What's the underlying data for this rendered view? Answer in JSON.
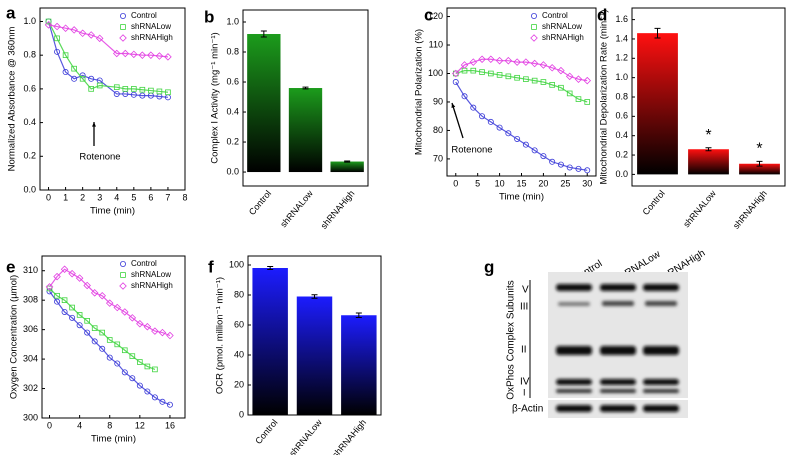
{
  "chart_data": [
    {
      "type": "scatter",
      "panel": "a",
      "xlabel": "Time (min)",
      "ylabel": "Normalized Absorbance @ 360nm",
      "annotation": "Rotenone",
      "legend": "top-right",
      "x": [
        0,
        0.5,
        1,
        1.5,
        2,
        2.5,
        3,
        4,
        4.5,
        5,
        5.5,
        6,
        6.5,
        7
      ],
      "series": [
        {
          "name": "Control",
          "color": "#3a3ad8",
          "values": [
            1.0,
            0.82,
            0.7,
            0.66,
            0.68,
            0.66,
            0.65,
            0.57,
            0.57,
            0.565,
            0.56,
            0.56,
            0.555,
            0.55
          ]
        },
        {
          "name": "shRNALow",
          "color": "#3ed43e",
          "values": [
            1.0,
            0.9,
            0.8,
            0.72,
            0.66,
            0.6,
            0.62,
            0.61,
            0.6,
            0.6,
            0.595,
            0.59,
            0.585,
            0.58
          ]
        },
        {
          "name": "shRNAHigh",
          "color": "#e23ee2",
          "values": [
            0.98,
            0.97,
            0.96,
            0.95,
            0.93,
            0.92,
            0.9,
            0.81,
            0.81,
            0.805,
            0.8,
            0.8,
            0.795,
            0.79
          ]
        }
      ],
      "xlim": [
        -0.5,
        8
      ],
      "xticks": [
        0,
        1,
        2,
        3,
        4,
        5,
        6,
        7,
        8
      ],
      "ylim": [
        0,
        1.08
      ],
      "yticks": [
        {
          "value": 0,
          "label": "0.0"
        },
        0.2,
        0.4,
        0.6,
        0.8,
        {
          "value": 1,
          "label": "1.0"
        }
      ]
    },
    {
      "type": "bar",
      "panel": "b",
      "ylabel": "Complex I Activity (mg⁻¹ min⁻¹)",
      "color": "#1c9c1c",
      "categories": [
        "Control",
        "shRNALow",
        "shRNAHigh"
      ],
      "values": [
        0.92,
        0.56,
        0.07
      ],
      "errors": [
        0.02,
        0.006,
        0.004
      ],
      "ylim": [
        -0.093,
        1.08
      ],
      "yticks": [
        {
          "value": 0,
          "label": "0.0"
        },
        0.2,
        0.4,
        0.6,
        0.8,
        {
          "value": 1,
          "label": "1.0"
        }
      ]
    },
    {
      "type": "scatter",
      "panel": "c",
      "xlabel": "Time (min)",
      "ylabel": "Mitochondrial Polarization (%)",
      "annotation": "Rotenone",
      "legend": "top-right",
      "x": [
        0,
        2,
        4,
        6,
        8,
        10,
        12,
        14,
        16,
        18,
        20,
        22,
        24,
        26,
        28,
        30
      ],
      "series": [
        {
          "name": "Control",
          "color": "#3a3ad8",
          "values": [
            97,
            92,
            88,
            85,
            83,
            81,
            79,
            77,
            75,
            73,
            71,
            69,
            68,
            67,
            66.5,
            66
          ]
        },
        {
          "name": "shRNALow",
          "color": "#3ed43e",
          "values": [
            100,
            101,
            101,
            100.5,
            100,
            99.5,
            99,
            98.5,
            98,
            97.5,
            97,
            96,
            95,
            93,
            91,
            90
          ]
        },
        {
          "name": "shRNAHigh",
          "color": "#e23ee2",
          "values": [
            100,
            103,
            104,
            105,
            105,
            104.5,
            104.5,
            104,
            104,
            103.5,
            103,
            102,
            101,
            99,
            98,
            97.5
          ]
        }
      ],
      "xlim": [
        -2,
        32
      ],
      "xticks": [
        0,
        5,
        10,
        15,
        20,
        25,
        30
      ],
      "ylim": [
        64,
        123
      ],
      "yticks": [
        70,
        80,
        90,
        100,
        110,
        120
      ]
    },
    {
      "type": "bar",
      "panel": "d",
      "ylabel": "Mitochondrial Depolarization Rate (min⁻¹)",
      "color": "#ff1010",
      "categories": [
        "Control",
        "shRNALow",
        "shRNAHigh"
      ],
      "values": [
        1.46,
        0.26,
        0.11
      ],
      "errors": [
        0.05,
        0.015,
        0.025
      ],
      "significance": [
        null,
        "*",
        "*"
      ],
      "ylim": [
        -0.12,
        1.72
      ],
      "yticks": [
        {
          "value": 0,
          "label": "0.0"
        },
        0.2,
        0.4,
        0.6,
        0.8,
        {
          "value": 1,
          "label": "1.0"
        },
        1.2,
        1.4,
        1.6
      ]
    },
    {
      "type": "scatter",
      "panel": "e",
      "xlabel": "Time (min)",
      "ylabel": "Oxygen Concentration (µmol)",
      "legend": "top-right",
      "x": [
        0,
        1,
        2,
        3,
        4,
        5,
        6,
        7,
        8,
        9,
        10,
        11,
        12,
        13,
        14,
        15,
        16
      ],
      "series": [
        {
          "name": "Control",
          "color": "#3a3ad8",
          "values": [
            308.6,
            307.9,
            307.2,
            306.8,
            306.3,
            305.8,
            305.2,
            304.7,
            304.1,
            303.7,
            303.1,
            302.7,
            302.2,
            301.8,
            301.4,
            301.1,
            300.9
          ]
        },
        {
          "name": "shRNALow",
          "color": "#3ed43e",
          "values": [
            308.8,
            308.3,
            308.0,
            307.5,
            307.0,
            306.6,
            306.1,
            305.8,
            305.3,
            305.0,
            304.6,
            304.2,
            303.8,
            303.5,
            303.3,
            null,
            null
          ]
        },
        {
          "name": "shRNAHigh",
          "color": "#e23ee2",
          "values": [
            308.9,
            309.6,
            310.1,
            309.8,
            309.5,
            309.0,
            308.5,
            308.3,
            307.8,
            307.5,
            307.2,
            306.8,
            306.4,
            306.2,
            305.9,
            305.8,
            305.6
          ]
        }
      ],
      "xlim": [
        -1,
        18
      ],
      "xticks": [
        0,
        4,
        8,
        12,
        16
      ],
      "ylim": [
        300,
        311
      ],
      "yticks": [
        300,
        302,
        304,
        306,
        308,
        310
      ]
    },
    {
      "type": "bar",
      "panel": "f",
      "ylabel": "OCR (pmol. million⁻¹ min⁻¹)",
      "color": "#1c1cff",
      "categories": [
        "Control",
        "shRNALow",
        "shRNAHigh"
      ],
      "values": [
        98,
        79,
        66.5
      ],
      "errors": [
        1,
        1.2,
        1.5
      ],
      "ylim": [
        0,
        106
      ],
      "yticks": [
        0,
        20,
        40,
        60,
        80,
        100
      ]
    }
  ],
  "blot": {
    "panel": "g",
    "columns": [
      "Control",
      "shRNALow",
      "shRNAHigh"
    ],
    "bands": [
      "V",
      "III",
      "II",
      "IV",
      "I"
    ],
    "row_group": "OxPhos Complex Subunits",
    "loading_control": "β-Actin"
  }
}
